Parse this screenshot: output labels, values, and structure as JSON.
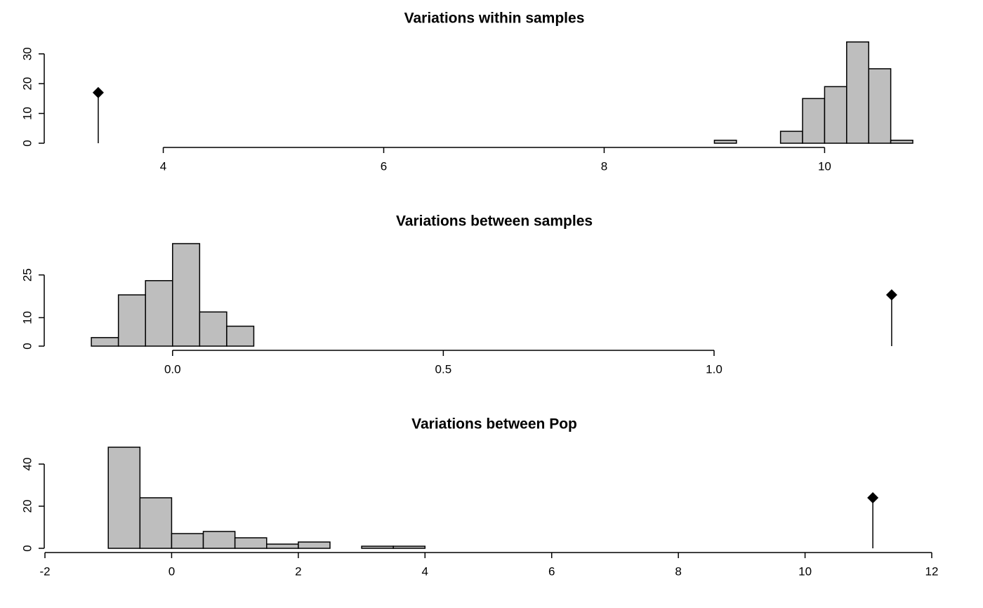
{
  "chart_data": [
    {
      "type": "histogram",
      "title": "Variations within samples",
      "bins": [
        9.0,
        9.2,
        9.4,
        9.6,
        9.8,
        10.0,
        10.2,
        10.4,
        10.6,
        10.8
      ],
      "counts": [
        1,
        0,
        0,
        4,
        15,
        19,
        34,
        25,
        1
      ],
      "observation": {
        "x": 3.41,
        "y": 17
      },
      "xlim": [
        2.92,
        10.8
      ],
      "xticks": [
        4,
        6,
        8,
        10
      ],
      "ylim": [
        0,
        35
      ],
      "yticks": [
        0,
        10,
        20,
        30
      ],
      "color": "#bebebe"
    },
    {
      "type": "histogram",
      "title": "Variations between samples",
      "bins": [
        -0.15,
        -0.1,
        -0.05,
        0,
        0.05,
        0.1,
        0.15
      ],
      "counts": [
        3,
        18,
        23,
        36,
        12,
        7
      ],
      "observation": {
        "x": 1.328,
        "y": 18
      },
      "xlim": [
        -0.237,
        1.367
      ],
      "xticks": [
        {
          "value": 0,
          "label": "0.0"
        },
        {
          "value": 0.5,
          "label": "0.5"
        },
        {
          "value": 1,
          "label": "1.0"
        }
      ],
      "ylim": [
        0,
        36
      ],
      "yticks": [
        0,
        10,
        25
      ],
      "color": "#bebebe"
    },
    {
      "type": "histogram",
      "title": "Variations between Pop",
      "bins": [
        -1,
        -0.5,
        0,
        0.5,
        1,
        1.5,
        2,
        2.5,
        3,
        3.5,
        4
      ],
      "counts": [
        48,
        24,
        7,
        8,
        5,
        2,
        3,
        0,
        1,
        1
      ],
      "observation": {
        "x": 11.07,
        "y": 24
      },
      "xlim": [
        -2,
        12
      ],
      "xticks": [
        -2,
        0,
        2,
        4,
        6,
        8,
        10,
        12
      ],
      "ylim": [
        0,
        48
      ],
      "yticks": [
        0,
        20,
        40
      ],
      "color": "#bebebe"
    }
  ]
}
